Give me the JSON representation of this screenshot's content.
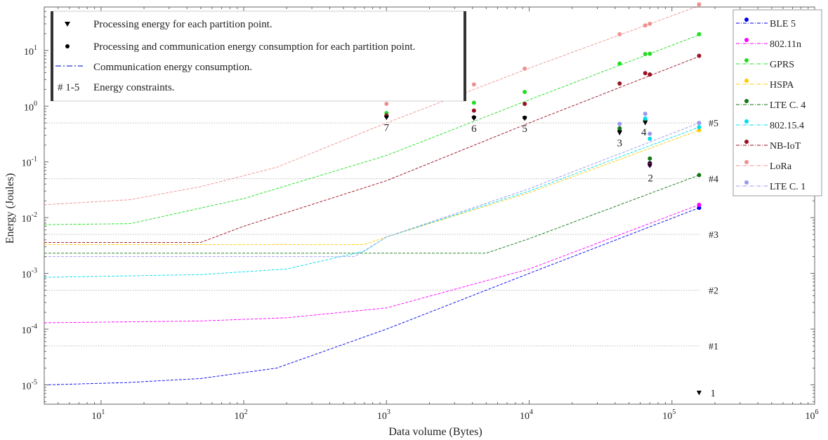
{
  "chart_data": {
    "type": "scatter",
    "title": "",
    "xlabel": "Data volume (Bytes)",
    "ylabel": "Energy (Joules)",
    "x_scale": "log",
    "y_scale": "log",
    "xlim": [
      4,
      1000000
    ],
    "ylim": [
      4.5e-06,
      60
    ],
    "x_ticks": [
      {
        "value": 10,
        "base": "10",
        "exp": "1"
      },
      {
        "value": 100,
        "base": "10",
        "exp": "2"
      },
      {
        "value": 1000,
        "base": "10",
        "exp": "3"
      },
      {
        "value": 10000,
        "base": "10",
        "exp": "4"
      },
      {
        "value": 100000,
        "base": "10",
        "exp": "5"
      },
      {
        "value": 1000000,
        "base": "10",
        "exp": "6"
      }
    ],
    "y_ticks": [
      {
        "value": 1e-05,
        "base": "10",
        "exp": "-5"
      },
      {
        "value": 0.0001,
        "base": "10",
        "exp": "-4"
      },
      {
        "value": 0.001,
        "base": "10",
        "exp": "-3"
      },
      {
        "value": 0.01,
        "base": "10",
        "exp": "-2"
      },
      {
        "value": 0.1,
        "base": "10",
        "exp": "-1"
      },
      {
        "value": 1,
        "label": "10",
        "exp": "0",
        "plain": "10^0"
      },
      {
        "value": 10,
        "base": "10",
        "exp": "1"
      }
    ],
    "grid": false,
    "constraints": [
      {
        "label": "#1",
        "value": 5e-05
      },
      {
        "label": "#2",
        "value": 0.0005
      },
      {
        "label": "#3",
        "value": 0.005
      },
      {
        "label": "#4",
        "value": 0.05
      },
      {
        "label": "#5",
        "value": 0.5
      }
    ],
    "series": [
      {
        "name": "BLE 5",
        "color": "#0000ee",
        "line": [
          [
            4,
            1e-05
          ],
          [
            15,
            1.1e-05
          ],
          [
            50,
            1.3e-05
          ],
          [
            170,
            2e-05
          ],
          [
            1000,
            0.0001
          ],
          [
            10000,
            0.001
          ],
          [
            155000,
            0.015
          ]
        ],
        "points": [
          [
            155000,
            0.015
          ]
        ]
      },
      {
        "name": "802.11n",
        "color": "#ff00ff",
        "line": [
          [
            4,
            0.00013
          ],
          [
            50,
            0.00014
          ],
          [
            200,
            0.00016
          ],
          [
            1000,
            0.00024
          ],
          [
            10000,
            0.0012
          ],
          [
            155000,
            0.017
          ]
        ],
        "points": [
          [
            155000,
            0.017
          ],
          [
            70000,
            0.088
          ]
        ]
      },
      {
        "name": "GPRS",
        "color": "#22dd22",
        "line": [
          [
            4,
            0.0075
          ],
          [
            16,
            0.0078
          ],
          [
            100,
            0.022
          ],
          [
            1000,
            0.13
          ],
          [
            10000,
            1.3
          ],
          [
            155000,
            19
          ]
        ],
        "points": [
          [
            1000,
            0.75
          ],
          [
            4100,
            1.15
          ],
          [
            9300,
            1.8
          ],
          [
            43000,
            5.8
          ],
          [
            65000,
            8.6
          ],
          [
            70000,
            8.7
          ],
          [
            155000,
            19.5
          ]
        ]
      },
      {
        "name": "HSPA",
        "color": "#ffcc00",
        "line": [
          [
            4,
            0.0033
          ],
          [
            700,
            0.0033
          ],
          [
            1000,
            0.0045
          ],
          [
            10000,
            0.028
          ],
          [
            155000,
            0.37
          ]
        ],
        "points": [
          [
            155000,
            0.37
          ]
        ]
      },
      {
        "name": "LTE C. 4",
        "color": "#117711",
        "line": [
          [
            4,
            0.0023
          ],
          [
            5000,
            0.0023
          ],
          [
            10000,
            0.0042
          ],
          [
            155000,
            0.058
          ]
        ],
        "points": [
          [
            43000,
            0.4
          ],
          [
            65000,
            0.56
          ],
          [
            70000,
            0.115
          ],
          [
            155000,
            0.058
          ]
        ]
      },
      {
        "name": "802.15.4",
        "color": "#00ddee",
        "line": [
          [
            4,
            0.00085
          ],
          [
            50,
            0.00095
          ],
          [
            200,
            0.0012
          ],
          [
            700,
            0.0025
          ],
          [
            1000,
            0.0045
          ],
          [
            10000,
            0.03
          ],
          [
            155000,
            0.42
          ]
        ],
        "points": [
          [
            65000,
            0.6
          ],
          [
            70000,
            0.26
          ],
          [
            155000,
            0.42
          ]
        ]
      },
      {
        "name": "NB-IoT",
        "color": "#991122",
        "line": [
          [
            4,
            0.0036
          ],
          [
            50,
            0.0036
          ],
          [
            100,
            0.007
          ],
          [
            1000,
            0.046
          ],
          [
            10000,
            0.5
          ],
          [
            155000,
            7.8
          ]
        ],
        "points": [
          [
            1000,
            0.68
          ],
          [
            4100,
            0.83
          ],
          [
            9300,
            1.1
          ],
          [
            43000,
            2.55
          ],
          [
            65000,
            3.9
          ],
          [
            70000,
            3.7
          ],
          [
            155000,
            8.0
          ]
        ]
      },
      {
        "name": "LoRa",
        "color": "#f09090",
        "line": [
          [
            4,
            0.017
          ],
          [
            16,
            0.021
          ],
          [
            50,
            0.036
          ],
          [
            170,
            0.08
          ],
          [
            1000,
            0.5
          ],
          [
            10000,
            4.8
          ],
          [
            155000,
            63
          ]
        ],
        "points": [
          [
            1000,
            1.1
          ],
          [
            4100,
            2.45
          ],
          [
            9300,
            4.7
          ],
          [
            43000,
            19.5
          ],
          [
            65000,
            28
          ],
          [
            70000,
            30
          ],
          [
            155000,
            67
          ]
        ]
      },
      {
        "name": "LTE C. 1",
        "color": "#9999ee",
        "line": [
          [
            4,
            0.002
          ],
          [
            600,
            0.002
          ],
          [
            1000,
            0.0045
          ],
          [
            10000,
            0.033
          ],
          [
            155000,
            0.5
          ]
        ],
        "points": [
          [
            43000,
            0.48
          ],
          [
            65000,
            0.73
          ],
          [
            70000,
            0.32
          ],
          [
            155000,
            0.5
          ]
        ]
      }
    ],
    "processing_points": [
      {
        "label": "7",
        "x": 1000,
        "y": 0.62
      },
      {
        "label": "6",
        "x": 4100,
        "y": 0.6
      },
      {
        "label": "5",
        "x": 9300,
        "y": 0.6
      },
      {
        "label": "3",
        "x": 43000,
        "y": 0.33
      },
      {
        "label": "4",
        "x": 65000,
        "y": 0.5
      },
      {
        "label": "2",
        "x": 70000,
        "y": 0.085
      },
      {
        "label": "1",
        "x": 155000,
        "y": 7.2e-06
      }
    ],
    "processing_black_dots": [
      {
        "x": 1000,
        "y": 0.66
      },
      {
        "x": 4100,
        "y": 0.63
      },
      {
        "x": 9300,
        "y": 0.62
      },
      {
        "x": 43000,
        "y": 0.36
      },
      {
        "x": 65000,
        "y": 0.55
      },
      {
        "x": 70000,
        "y": 0.095
      }
    ],
    "top_legend": [
      {
        "symbol": "▼",
        "text": "Processing energy for each partition point."
      },
      {
        "symbol": "●",
        "text": "Processing and communication energy consumption for each partition point."
      },
      {
        "symbol": "line",
        "text": "Communication energy consumption."
      },
      {
        "symbol": "# 1-5",
        "text": "Energy constraints."
      }
    ],
    "legend_position": "right"
  }
}
